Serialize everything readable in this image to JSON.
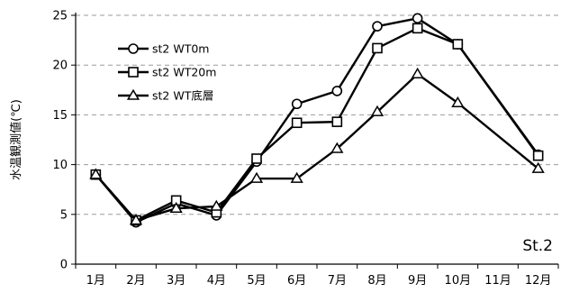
{
  "chart_data": {
    "type": "line",
    "categories": [
      "1月",
      "2月",
      "3月",
      "4月",
      "5月",
      "6月",
      "7月",
      "8月",
      "9月",
      "10月",
      "11月",
      "12月"
    ],
    "ylabel": "水温観測値(℃)",
    "xlabel": "",
    "ylim": [
      0,
      25
    ],
    "yticks": [
      0,
      5,
      10,
      15,
      20,
      25
    ],
    "grid": "horizontal-dashed",
    "legend_position": "top-left",
    "annotation": "St.2",
    "series": [
      {
        "name": "st2 WT0m",
        "marker": "circle",
        "values": [
          9.0,
          4.2,
          6.1,
          4.9,
          10.3,
          16.1,
          17.4,
          23.9,
          24.7,
          22.1,
          null,
          11.0
        ]
      },
      {
        "name": "st2 WT20m",
        "marker": "square",
        "values": [
          9.0,
          4.4,
          6.4,
          5.2,
          10.6,
          14.2,
          14.3,
          21.7,
          23.7,
          22.1,
          null,
          10.9
        ]
      },
      {
        "name": "st2 WT底層",
        "marker": "triangle",
        "values": [
          9.0,
          4.4,
          5.6,
          5.8,
          8.6,
          8.6,
          11.6,
          15.3,
          19.1,
          16.2,
          null,
          9.6
        ]
      }
    ],
    "colors": {
      "line": "#000000",
      "grid": "#9a9a9a",
      "marker_fill": "#ffffff"
    }
  }
}
